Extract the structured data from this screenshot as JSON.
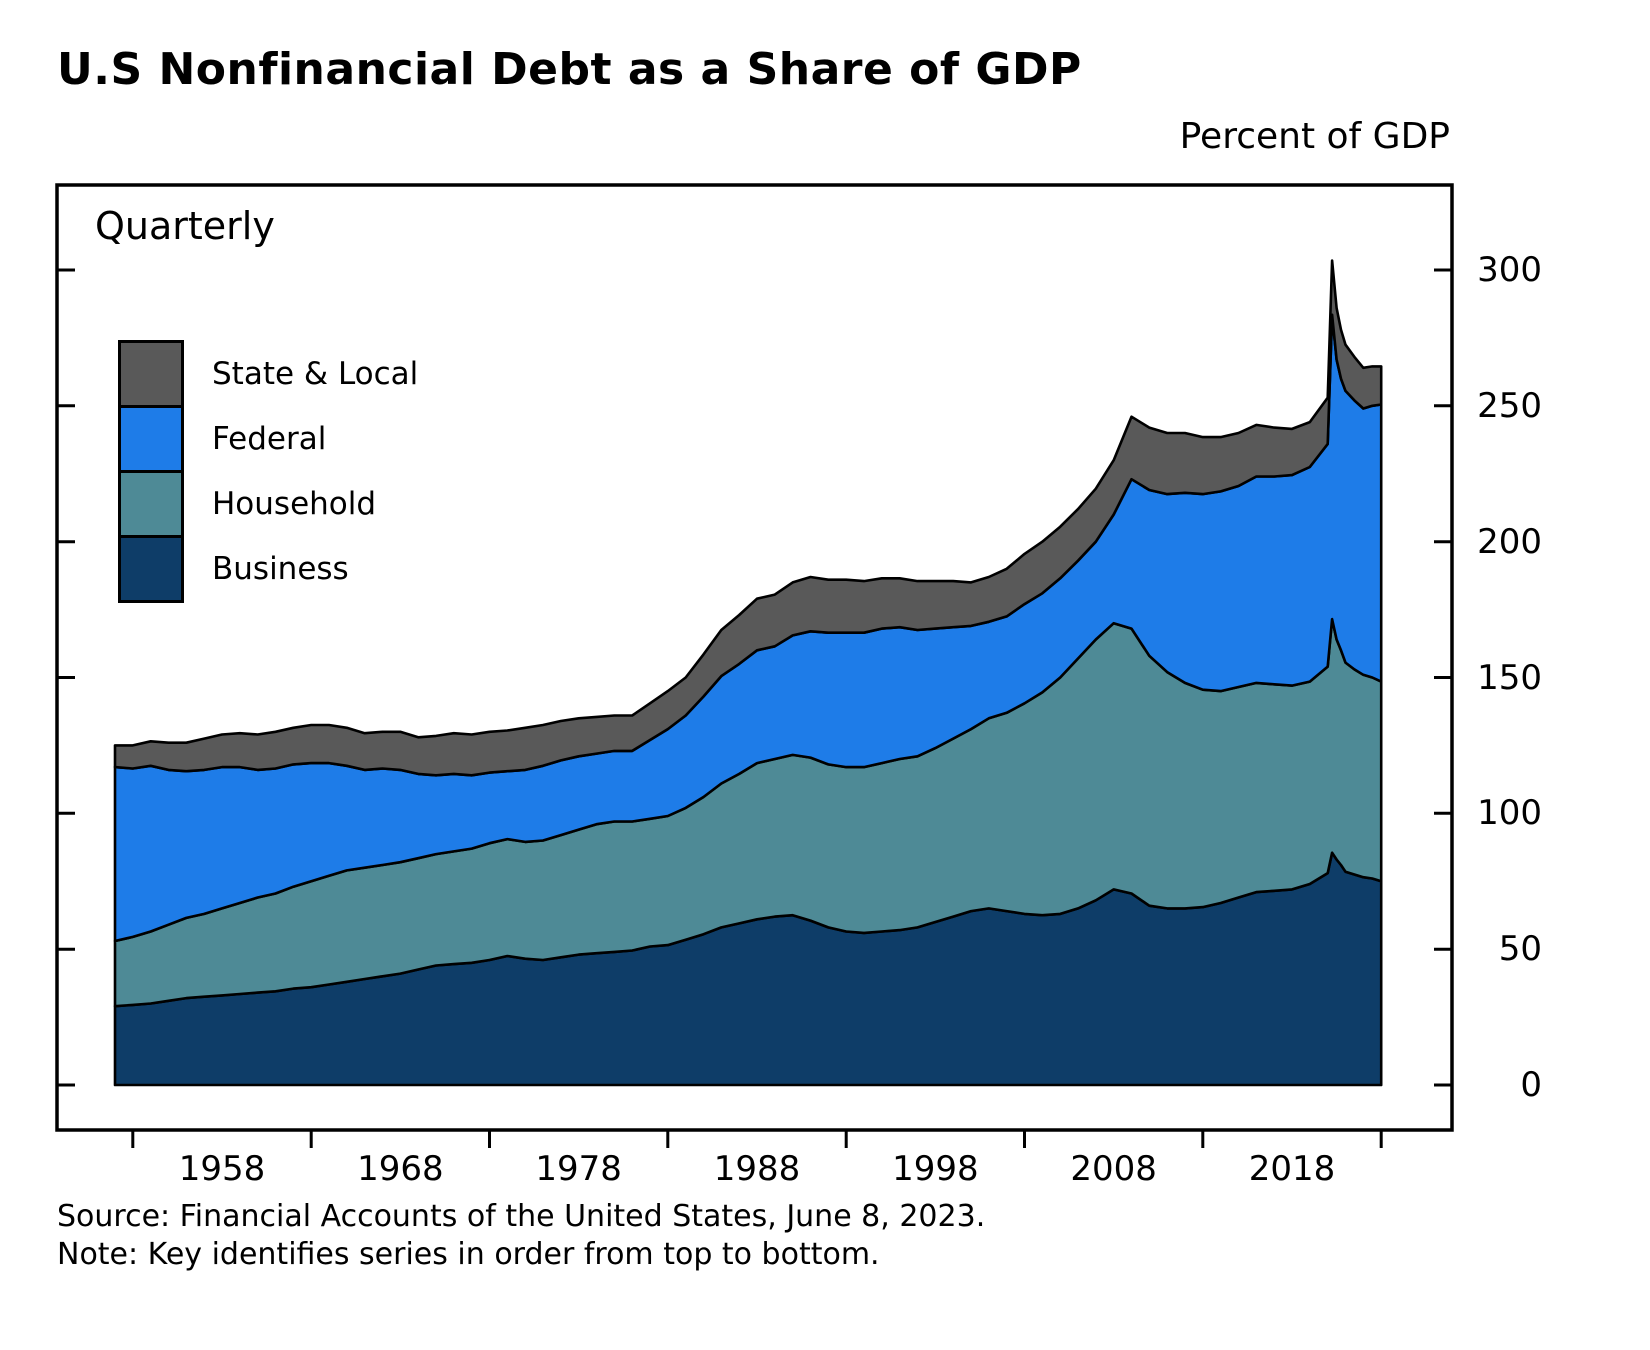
{
  "title": "U.S Nonfinancial Debt as a Share of GDP",
  "unit_label": "Percent of GDP",
  "frequency_label": "Quarterly",
  "notes": {
    "source": "Source: Financial Accounts of the United States, June 8, 2023.",
    "key": "Note: Key identifies series in order from top to bottom."
  },
  "chart_data": {
    "type": "area",
    "stacked": true,
    "stack_order": "bottom-to-top",
    "title": "U.S Nonfinancial Debt as a Share of GDP",
    "xlabel": "",
    "ylabel": "Percent of GDP",
    "frequency": "Quarterly",
    "ylim_display": [
      0,
      300
    ],
    "grid": false,
    "legend": {
      "position": "inside-top-left",
      "order_note": "top to bottom of stack",
      "entries": [
        {
          "label": "State & Local",
          "color": "#595959"
        },
        {
          "label": "Federal",
          "color": "#1e7ce8"
        },
        {
          "label": "Household",
          "color": "#4e8a96"
        },
        {
          "label": "Business",
          "color": "#0e3d68"
        }
      ]
    },
    "y_axis": {
      "side": "right",
      "ticks": [
        0,
        50,
        100,
        150,
        200,
        250,
        300
      ]
    },
    "x_axis": {
      "tick_years": [
        1953,
        1963,
        1973,
        1983,
        1993,
        2003,
        2013,
        2023
      ],
      "label_years": [
        1958,
        1968,
        1978,
        1988,
        1998,
        2008,
        2018
      ]
    },
    "x": [
      1952,
      1953,
      1954,
      1955,
      1956,
      1957,
      1958,
      1959,
      1960,
      1961,
      1962,
      1963,
      1964,
      1965,
      1966,
      1967,
      1968,
      1969,
      1970,
      1971,
      1972,
      1973,
      1974,
      1975,
      1976,
      1977,
      1978,
      1979,
      1980,
      1981,
      1982,
      1983,
      1984,
      1985,
      1986,
      1987,
      1988,
      1989,
      1990,
      1991,
      1992,
      1993,
      1994,
      1995,
      1996,
      1997,
      1998,
      1999,
      2000,
      2001,
      2002,
      2003,
      2004,
      2005,
      2006,
      2007,
      2008,
      2009,
      2010,
      2011,
      2012,
      2013,
      2014,
      2015,
      2016,
      2017,
      2018,
      2019,
      2020,
      2020.25,
      2020.5,
      2020.75,
      2021,
      2021.5,
      2022,
      2022.5,
      2023
    ],
    "series": [
      {
        "name": "Business",
        "color": "#0e3d68",
        "values": [
          29,
          29.5,
          30,
          31,
          32,
          32.5,
          33,
          33.5,
          34,
          34.5,
          35.5,
          36,
          37,
          38,
          39,
          40,
          41,
          42.5,
          44,
          44.5,
          45,
          46,
          47.5,
          46.5,
          46,
          47,
          48,
          48.5,
          49,
          49.5,
          51,
          51.5,
          53.5,
          55.5,
          58,
          59.5,
          61,
          62,
          62.5,
          60.5,
          58,
          56.5,
          56,
          56.5,
          57,
          58,
          60,
          62,
          64,
          65,
          64,
          63,
          62.5,
          63,
          65,
          68,
          72,
          70.5,
          66,
          65,
          65,
          65.5,
          67,
          69,
          71,
          71.5,
          72,
          74,
          78,
          85.5,
          83,
          81,
          78.5,
          77.5,
          76.5,
          76,
          75
        ]
      },
      {
        "name": "Household",
        "color": "#4e8a96",
        "values": [
          24,
          25,
          26.5,
          28,
          29.5,
          30.5,
          32,
          33.5,
          35,
          36,
          37.5,
          39,
          40,
          41,
          41,
          41,
          41,
          41,
          41,
          41.5,
          42,
          43,
          43,
          43,
          44,
          45,
          46,
          47.5,
          48,
          47.5,
          47,
          47.5,
          48.5,
          50.5,
          53,
          55,
          57.5,
          58,
          59,
          60,
          60,
          60.5,
          61,
          62,
          63,
          63,
          64,
          65.5,
          67,
          70,
          73,
          77.5,
          82,
          87,
          92,
          96,
          98,
          97.5,
          92,
          87,
          83,
          80,
          78,
          77.5,
          77,
          76,
          75,
          74.5,
          76,
          86,
          81,
          79,
          77,
          75.5,
          74.5,
          74,
          73.5
        ]
      },
      {
        "name": "Federal",
        "color": "#1e7ce8",
        "values": [
          64,
          62,
          61,
          57,
          54,
          53,
          52,
          50,
          47,
          46,
          45,
          43.5,
          41.5,
          38.5,
          36,
          35.5,
          34,
          31,
          29,
          28.5,
          27,
          26,
          25,
          26.5,
          27.5,
          27.5,
          27,
          26,
          26,
          26,
          29,
          32,
          34,
          37,
          39.5,
          40.5,
          41.5,
          41.5,
          44,
          46.5,
          48.5,
          49.5,
          49.5,
          49.5,
          48.5,
          46.5,
          44,
          41,
          38,
          35.5,
          35.5,
          36.5,
          36.5,
          36.5,
          36,
          36,
          40,
          55,
          61,
          65.5,
          70,
          72,
          73.5,
          74,
          76,
          76.5,
          77.5,
          79,
          82,
          112,
          103,
          100,
          100,
          99,
          98,
          100,
          102
        ]
      },
      {
        "name": "State & Local",
        "color": "#595959",
        "values": [
          8,
          8.5,
          9,
          10,
          10.5,
          11.5,
          12,
          12.5,
          13,
          13.5,
          13.5,
          14,
          14,
          14,
          13.5,
          13.5,
          14,
          13.5,
          14.5,
          15,
          15,
          15,
          15,
          15.5,
          15,
          14.5,
          14,
          13.5,
          13,
          13,
          13.5,
          14,
          14,
          15.5,
          17,
          18,
          19,
          19,
          19.5,
          20,
          19.5,
          19.5,
          19,
          18.5,
          18,
          18,
          17.5,
          17,
          16,
          16.5,
          17.5,
          18.5,
          19,
          19,
          19,
          19.5,
          20,
          23,
          23,
          22.5,
          22,
          21,
          20,
          19.5,
          19,
          18,
          17,
          16.5,
          17,
          20,
          19,
          18,
          17,
          16,
          15,
          14.5,
          14
        ]
      }
    ]
  }
}
